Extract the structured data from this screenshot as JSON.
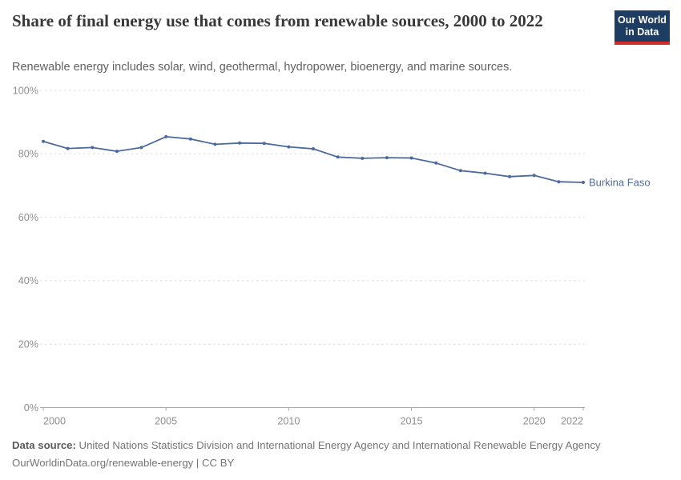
{
  "header": {
    "title": "Share of final energy use that comes from renewable sources, 2000 to 2022",
    "subtitle": "Renewable energy includes solar, wind, geothermal, hydropower, bioenergy, and marine sources.",
    "logo_line1": "Our World",
    "logo_line2": "in Data"
  },
  "chart_data": {
    "type": "line",
    "title": "Share of final energy use that comes from renewable sources, 2000 to 2022",
    "xlabel": "",
    "ylabel": "",
    "xlim": [
      2000,
      2022
    ],
    "ylim": [
      0,
      100
    ],
    "grid": "horizontal-dashed",
    "legend_position": "end-of-line-label",
    "xticks": [
      2000,
      2005,
      2010,
      2015,
      2020,
      2022
    ],
    "xtick_labels": [
      "2000",
      "2005",
      "2010",
      "2015",
      "2020",
      "2022"
    ],
    "yticks": [
      0,
      20,
      40,
      60,
      80,
      100
    ],
    "ytick_labels": [
      "0%",
      "20%",
      "40%",
      "60%",
      "80%",
      "100%"
    ],
    "x": [
      2000,
      2001,
      2002,
      2003,
      2004,
      2005,
      2006,
      2007,
      2008,
      2009,
      2010,
      2011,
      2012,
      2013,
      2014,
      2015,
      2016,
      2017,
      2018,
      2019,
      2020,
      2021,
      2022
    ],
    "series": [
      {
        "name": "Burkina Faso",
        "color": "#4C6A9C",
        "values": [
          83.9,
          81.7,
          82.0,
          80.8,
          82.0,
          85.4,
          84.7,
          83.0,
          83.4,
          83.3,
          82.2,
          81.6,
          79.0,
          78.6,
          78.8,
          78.7,
          77.1,
          74.7,
          73.9,
          72.8,
          73.2,
          71.2,
          71.0
        ]
      }
    ]
  },
  "footer": {
    "source_label": "Data source:",
    "source_text": " United Nations Statistics Division and International Energy Agency and International Renewable Energy Agency",
    "link_line": "OurWorldinData.org/renewable-energy | CC BY"
  },
  "colors": {
    "line": "#4C6A9C",
    "series_label": "#4C6A9C",
    "title": "#383838",
    "subtitle": "#616161",
    "axis_label": "#8F8F8F",
    "gridline": "#DCDCDC",
    "axis_line": "#A8A8A8",
    "logo_background": "#1D3D63",
    "logo_red_bar": "#D42B2B"
  }
}
